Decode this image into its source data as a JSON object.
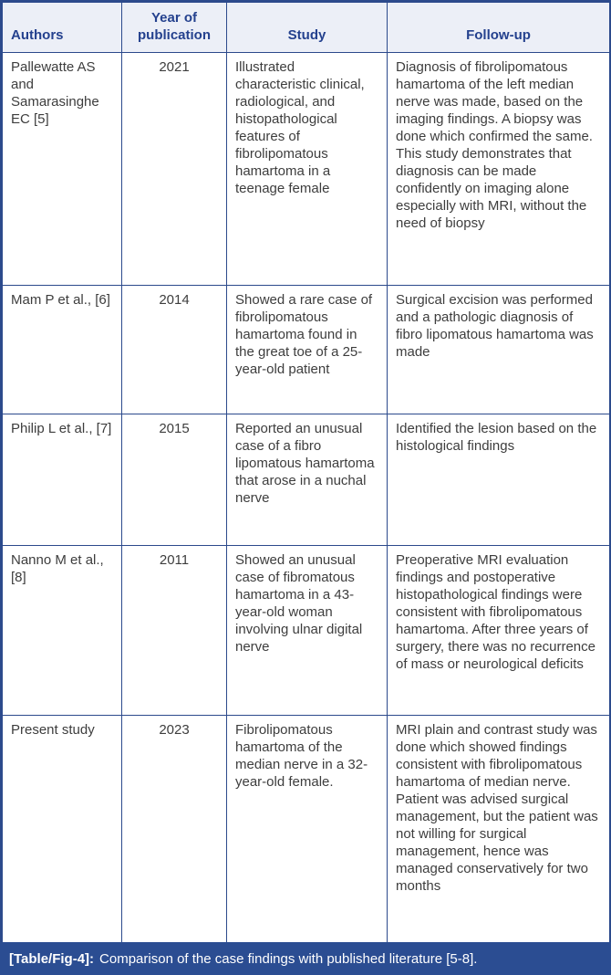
{
  "table": {
    "columns": {
      "authors": "Authors",
      "year": "Year of publication",
      "study": "Study",
      "followup": "Follow-up"
    },
    "rows": [
      {
        "authors": "Pallewatte AS and Samarasinghe EC [5]",
        "year": "2021",
        "study": "Illustrated characteristic clinical, radiological, and histopathological features of fibrolipomatous hamartoma in a teenage female",
        "followup": "Diagnosis of fibrolipomatous hamartoma of the left median nerve was made, based on the imaging findings. A biopsy was done which confirmed the same. This study demonstrates that diagnosis can be made confidently on imaging alone especially with MRI, without the need of biopsy"
      },
      {
        "authors": "Mam P et al., [6]",
        "year": "2014",
        "study": "Showed a rare case of fibrolipomatous hamartoma found in the great toe of a 25-year-old patient",
        "followup": "Surgical excision was performed and a pathologic diagnosis of fibro lipomatous hamartoma was made"
      },
      {
        "authors": "Philip L et al., [7]",
        "year": "2015",
        "study": "Reported an unusual case of a fibro lipomatous hamartoma that arose in a nuchal nerve",
        "followup": "Identified the lesion based on the histological findings"
      },
      {
        "authors": "Nanno M et al., [8]",
        "year": "2011",
        "study": "Showed an unusual case of fibromatous hamartoma in a 43-year-old woman involving ulnar digital nerve",
        "followup": "Preoperative MRI evaluation findings and postoperative histopathological findings were consistent with fibrolipomatous hamartoma. After three years of surgery, there was no recurrence of mass or neurological deficits"
      },
      {
        "authors": "Present study",
        "year": "2023",
        "study": "Fibrolipomatous hamartoma of the median nerve in a 32-year-old female.",
        "followup": "MRI plain and contrast study was done which showed findings consistent with fibrolipomatous hamartoma of median nerve. Patient was advised surgical management, but the patient was not willing for surgical management, hence was managed conservatively for two months"
      }
    ]
  },
  "caption": {
    "tag": "[Table/Fig-4]:",
    "text": "Comparison of the case findings with published literature [5-8]."
  },
  "colors": {
    "border_navy": "#2c4a8c",
    "header_background": "#eceff7",
    "header_text": "#24418e",
    "body_text": "#3d3d3d",
    "caption_background": "#2b4d92",
    "caption_text": "#ffffff"
  }
}
